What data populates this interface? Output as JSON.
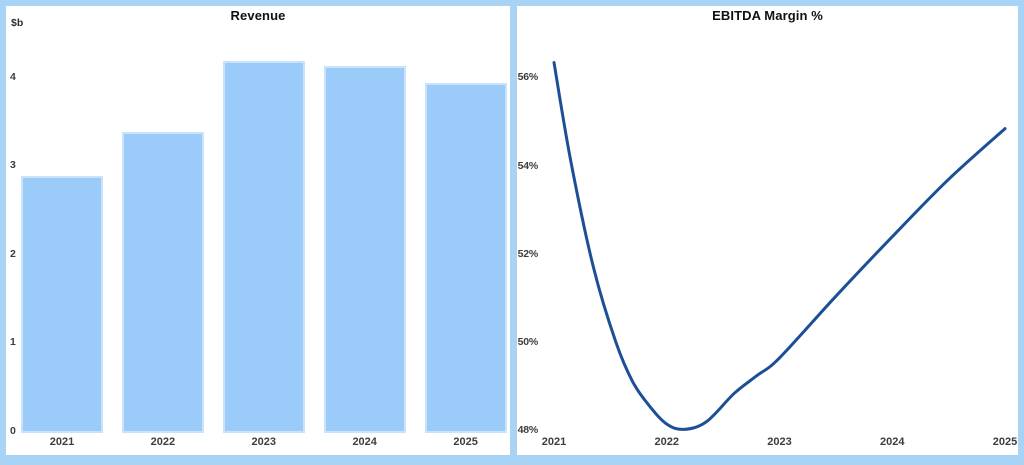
{
  "chart_data": [
    {
      "type": "bar",
      "title": "Revenue",
      "unit_label": "$b",
      "categories": [
        "2021",
        "2022",
        "2023",
        "2024",
        "2025"
      ],
      "values": [
        2.9,
        3.4,
        4.2,
        4.15,
        3.95
      ],
      "yticks": [
        0,
        1,
        2,
        3,
        4
      ],
      "ylim": [
        0,
        4.6
      ],
      "xlabel": "",
      "ylabel": "$b",
      "grid": false,
      "legend": "none",
      "bar_color": "#9bcbf8",
      "bar_border_color": "#c8e3fb"
    },
    {
      "type": "line",
      "title": "EBITDA Margin %",
      "x": [
        2021,
        2022,
        2023,
        2024,
        2025
      ],
      "values": [
        56.3,
        48.1,
        49.6,
        52.4,
        54.8
      ],
      "curve_samples": [
        [
          2021.0,
          56.35
        ],
        [
          2021.15,
          54.1
        ],
        [
          2021.35,
          51.7
        ],
        [
          2021.55,
          50.0
        ],
        [
          2021.7,
          49.1
        ],
        [
          2021.85,
          48.55
        ],
        [
          2022.0,
          48.15
        ],
        [
          2022.15,
          48.03
        ],
        [
          2022.35,
          48.2
        ],
        [
          2022.6,
          48.85
        ],
        [
          2022.8,
          49.25
        ],
        [
          2023.0,
          49.65
        ],
        [
          2023.5,
          51.05
        ],
        [
          2024.0,
          52.4
        ],
        [
          2024.5,
          53.7
        ],
        [
          2025.0,
          54.85
        ]
      ],
      "ytick_labels": [
        "56%",
        "54%",
        "52%",
        "50%",
        "48%"
      ],
      "ytick_values": [
        56,
        54,
        52,
        50,
        48
      ],
      "ylim": [
        47.9,
        56.8
      ],
      "xlabel": "",
      "ylabel": "",
      "grid": false,
      "legend": "none",
      "line_color": "#1d4f97"
    }
  ],
  "colors": {
    "frame_background": "#a9d3f5",
    "panel_background": "#ffffff",
    "tick_text": "#3d3d3d",
    "title_text": "#111111"
  }
}
